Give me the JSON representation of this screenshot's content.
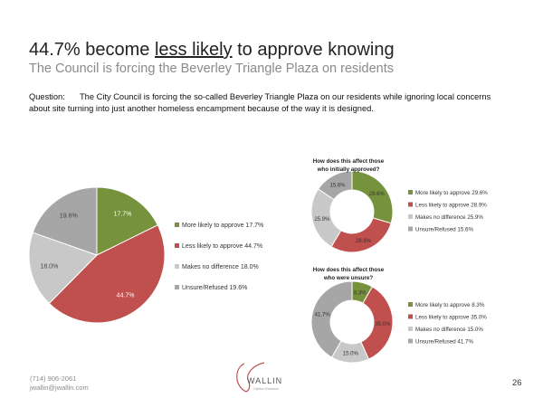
{
  "header": {
    "title_pre": "44.7% become ",
    "title_underlined": "less likely",
    "title_post": " to approve knowing",
    "subtitle": "The Council is forcing the Beverley Triangle Plaza on residents"
  },
  "question": {
    "label": "Question:",
    "text": "The City Council is forcing the so-called Beverley Triangle Plaza on our residents while ignoring local concerns about site turning into just another homeless encampment because of the way it is designed."
  },
  "colors": {
    "more": "#76923c",
    "less": "#c0504d",
    "nodiff": "#c8c8c8",
    "unsure": "#a6a6a6"
  },
  "chart_data": [
    {
      "type": "pie",
      "title": "",
      "categories": [
        "More likely to approve",
        "Less likely to approve",
        "Makes no difference",
        "Unsure/Refused"
      ],
      "values": [
        17.7,
        44.7,
        18.0,
        19.6
      ],
      "labels": [
        "17.7%",
        "44.7%",
        "18.0%",
        "19.6%"
      ],
      "legend": [
        "More likely to approve 17.7%",
        "Less likely to approve 44.7%",
        "Makes no difference 18.0%",
        "Unsure/Refused 19.6%"
      ],
      "legend_position": "right"
    },
    {
      "type": "donut",
      "title": [
        "How does this affect those",
        "who initially approved?"
      ],
      "categories": [
        "More likely to approve",
        "Less likely to approve",
        "Makes no difference",
        "Unsure/Refused"
      ],
      "values": [
        29.6,
        28.9,
        25.9,
        15.6
      ],
      "labels": [
        "29.6%",
        "28.9%",
        "25.9%",
        "15.6%"
      ],
      "legend": [
        "More likely to approve 29.6%",
        "Less likely to approve 28.9%",
        "Makes no difference 25.9%",
        "Unsure/Refused 15.6%"
      ],
      "legend_position": "right"
    },
    {
      "type": "donut",
      "title": [
        "How does this affect those",
        "who were unsure?"
      ],
      "categories": [
        "More likely to approve",
        "Less likely to approve",
        "Makes no difference",
        "Unsure/Refused"
      ],
      "values": [
        8.3,
        35.0,
        15.0,
        41.7
      ],
      "labels": [
        "8.3%",
        "35.0%",
        "15.0%",
        "41.7%"
      ],
      "legend": [
        "More likely to approve 8.3%",
        "Less likely to approve 35.0%",
        "Makes no difference 15.0%",
        "Unsure/Refused 41.7%"
      ],
      "legend_position": "right"
    }
  ],
  "footer": {
    "phone": "(714) 906-2061",
    "email": "jwallin@jwallin.com",
    "logo_text": "WALLIN",
    "logo_sub": "Opinion Research",
    "page_number": "26"
  }
}
